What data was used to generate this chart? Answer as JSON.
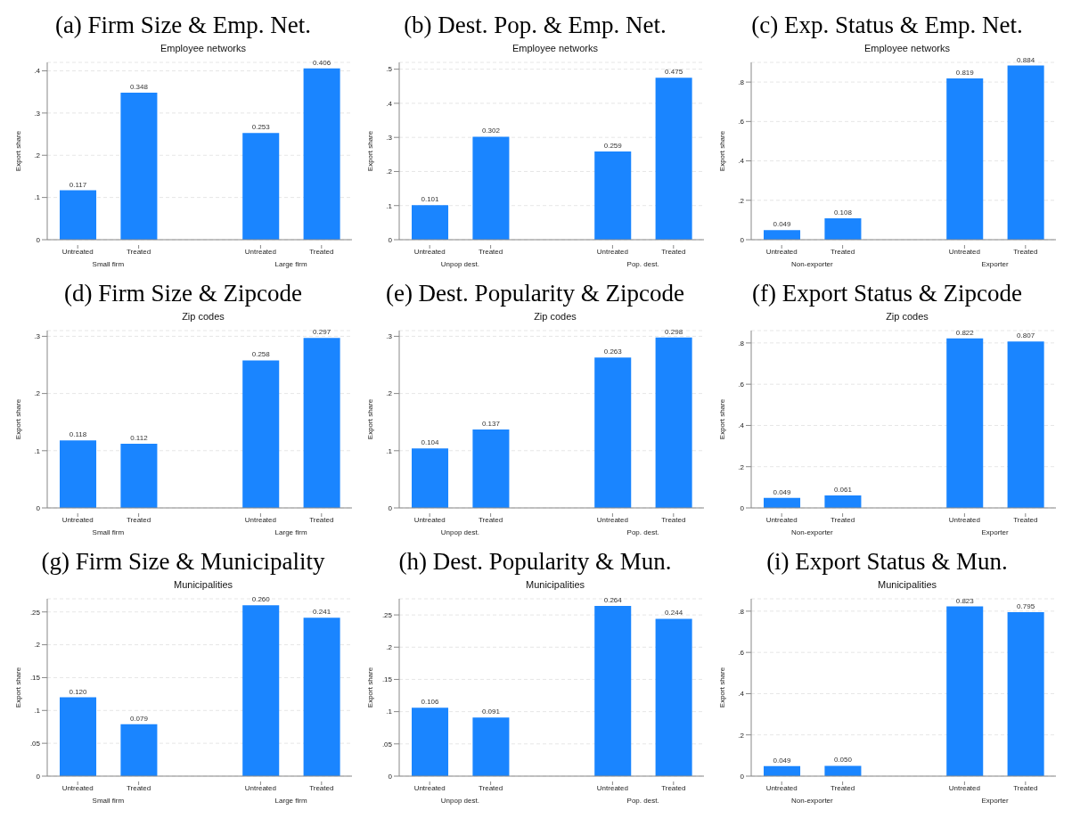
{
  "chart_data": [
    {
      "type": "bar",
      "title": "(a) Firm Size & Emp. Net.",
      "subtitle": "Employee networks",
      "ylabel": "Export share",
      "categories": [
        "Untreated",
        "Treated",
        "Untreated",
        "Treated"
      ],
      "values": [
        0.117,
        0.348,
        0.253,
        0.406
      ],
      "value_labels": [
        "0.117",
        "0.348",
        "0.253",
        "0.406"
      ],
      "color": "#1a85ff",
      "annotations": [
        "Small firm",
        "Large firm"
      ],
      "ylim": [
        0,
        0.42
      ],
      "yticks": [
        {
          "value": 0,
          "label": "0"
        },
        {
          "value": 0.1,
          "label": ".1"
        },
        {
          "value": 0.2,
          "label": ".2"
        },
        {
          "value": 0.3,
          "label": ".3"
        },
        {
          "value": 0.4,
          "label": ".4"
        }
      ],
      "grid": "y"
    },
    {
      "type": "bar",
      "title": "(b) Dest. Pop. & Emp. Net.",
      "subtitle": "Employee networks",
      "ylabel": "Export share",
      "categories": [
        "Untreated",
        "Treated",
        "Untreated",
        "Treated"
      ],
      "values": [
        0.101,
        0.302,
        0.259,
        0.475
      ],
      "value_labels": [
        "0.101",
        "0.302",
        "0.259",
        "0.475"
      ],
      "color": "#1a85ff",
      "annotations": [
        "Unpop dest.",
        "Pop. dest."
      ],
      "ylim": [
        0,
        0.52
      ],
      "yticks": [
        {
          "value": 0,
          "label": "0"
        },
        {
          "value": 0.1,
          "label": ".1"
        },
        {
          "value": 0.2,
          "label": ".2"
        },
        {
          "value": 0.3,
          "label": ".3"
        },
        {
          "value": 0.4,
          "label": ".4"
        },
        {
          "value": 0.5,
          "label": ".5"
        }
      ],
      "grid": "y"
    },
    {
      "type": "bar",
      "title": "(c) Exp. Status & Emp. Net.",
      "subtitle": "Employee networks",
      "ylabel": "Export share",
      "categories": [
        "Untreated",
        "Treated",
        "Untreated",
        "Treated"
      ],
      "values": [
        0.049,
        0.108,
        0.819,
        0.884
      ],
      "value_labels": [
        "0.049",
        "0.108",
        "0.819",
        "0.884"
      ],
      "color": "#1a85ff",
      "annotations": [
        "Non-exporter",
        "Exporter"
      ],
      "ylim": [
        0,
        0.9
      ],
      "yticks": [
        {
          "value": 0,
          "label": "0"
        },
        {
          "value": 0.2,
          "label": ".2"
        },
        {
          "value": 0.4,
          "label": ".4"
        },
        {
          "value": 0.6,
          "label": ".6"
        },
        {
          "value": 0.8,
          "label": ".8"
        }
      ],
      "grid": "y"
    },
    {
      "type": "bar",
      "title": "(d) Firm Size & Zipcode",
      "subtitle": "Zip codes",
      "ylabel": "Export share",
      "categories": [
        "Untreated",
        "Treated",
        "Untreated",
        "Treated"
      ],
      "values": [
        0.118,
        0.112,
        0.258,
        0.297
      ],
      "value_labels": [
        "0.118",
        "0.112",
        "0.258",
        "0.297"
      ],
      "color": "#1a85ff",
      "annotations": [
        "Small firm",
        "Large firm"
      ],
      "ylim": [
        0,
        0.31
      ],
      "yticks": [
        {
          "value": 0,
          "label": "0"
        },
        {
          "value": 0.1,
          "label": ".1"
        },
        {
          "value": 0.2,
          "label": ".2"
        },
        {
          "value": 0.3,
          "label": ".3"
        }
      ],
      "grid": "y"
    },
    {
      "type": "bar",
      "title": "(e) Dest. Popularity & Zipcode",
      "subtitle": "Zip codes",
      "ylabel": "Export share",
      "categories": [
        "Untreated",
        "Treated",
        "Untreated",
        "Treated"
      ],
      "values": [
        0.104,
        0.137,
        0.263,
        0.298
      ],
      "value_labels": [
        "0.104",
        "0.137",
        "0.263",
        "0.298"
      ],
      "color": "#1a85ff",
      "annotations": [
        "Unpop dest.",
        "Pop. dest."
      ],
      "ylim": [
        0,
        0.31
      ],
      "yticks": [
        {
          "value": 0,
          "label": "0"
        },
        {
          "value": 0.1,
          "label": ".1"
        },
        {
          "value": 0.2,
          "label": ".2"
        },
        {
          "value": 0.3,
          "label": ".3"
        }
      ],
      "grid": "y"
    },
    {
      "type": "bar",
      "title": "(f) Export Status & Zipcode",
      "subtitle": "Zip codes",
      "ylabel": "Export share",
      "categories": [
        "Untreated",
        "Treated",
        "Untreated",
        "Treated"
      ],
      "values": [
        0.049,
        0.061,
        0.822,
        0.807
      ],
      "value_labels": [
        "0.049",
        "0.061",
        "0.822",
        "0.807"
      ],
      "color": "#1a85ff",
      "annotations": [
        "Non-exporter",
        "Exporter"
      ],
      "ylim": [
        0,
        0.86
      ],
      "yticks": [
        {
          "value": 0,
          "label": "0"
        },
        {
          "value": 0.2,
          "label": ".2"
        },
        {
          "value": 0.4,
          "label": ".4"
        },
        {
          "value": 0.6,
          "label": ".6"
        },
        {
          "value": 0.8,
          "label": ".8"
        }
      ],
      "grid": "y"
    },
    {
      "type": "bar",
      "title": "(g) Firm Size & Municipality",
      "subtitle": "Municipalities",
      "ylabel": "Export share",
      "categories": [
        "Untreated",
        "Treated",
        "Untreated",
        "Treated"
      ],
      "values": [
        0.12,
        0.079,
        0.26,
        0.241
      ],
      "value_labels": [
        "0.120",
        "0.079",
        "0.260",
        "0.241"
      ],
      "color": "#1a85ff",
      "annotations": [
        "Small firm",
        "Large firm"
      ],
      "ylim": [
        0,
        0.27
      ],
      "yticks": [
        {
          "value": 0,
          "label": "0"
        },
        {
          "value": 0.05,
          "label": ".05"
        },
        {
          "value": 0.1,
          "label": ".1"
        },
        {
          "value": 0.15,
          "label": ".15"
        },
        {
          "value": 0.2,
          "label": ".2"
        },
        {
          "value": 0.25,
          "label": ".25"
        }
      ],
      "grid": "y"
    },
    {
      "type": "bar",
      "title": "(h) Dest. Popularity & Mun.",
      "subtitle": "Municipalities",
      "ylabel": "Export share",
      "categories": [
        "Untreated",
        "Treated",
        "Untreated",
        "Treated"
      ],
      "values": [
        0.106,
        0.091,
        0.264,
        0.244
      ],
      "value_labels": [
        "0.106",
        "0.091",
        "0.264",
        "0.244"
      ],
      "color": "#1a85ff",
      "annotations": [
        "Unpop dest.",
        "Pop. dest."
      ],
      "ylim": [
        0,
        0.275
      ],
      "yticks": [
        {
          "value": 0,
          "label": "0"
        },
        {
          "value": 0.05,
          "label": ".05"
        },
        {
          "value": 0.1,
          "label": ".1"
        },
        {
          "value": 0.15,
          "label": ".15"
        },
        {
          "value": 0.2,
          "label": ".2"
        },
        {
          "value": 0.25,
          "label": ".25"
        }
      ],
      "grid": "y"
    },
    {
      "type": "bar",
      "title": "(i) Export Status & Mun.",
      "subtitle": "Municipalities",
      "ylabel": "Export share",
      "categories": [
        "Untreated",
        "Treated",
        "Untreated",
        "Treated"
      ],
      "values": [
        0.049,
        0.05,
        0.823,
        0.795
      ],
      "value_labels": [
        "0.049",
        "0.050",
        "0.823",
        "0.795"
      ],
      "color": "#1a85ff",
      "annotations": [
        "Non-exporter",
        "Exporter"
      ],
      "ylim": [
        0,
        0.86
      ],
      "yticks": [
        {
          "value": 0,
          "label": "0"
        },
        {
          "value": 0.2,
          "label": ".2"
        },
        {
          "value": 0.4,
          "label": ".4"
        },
        {
          "value": 0.6,
          "label": ".6"
        },
        {
          "value": 0.8,
          "label": ".8"
        }
      ],
      "grid": "y"
    }
  ]
}
